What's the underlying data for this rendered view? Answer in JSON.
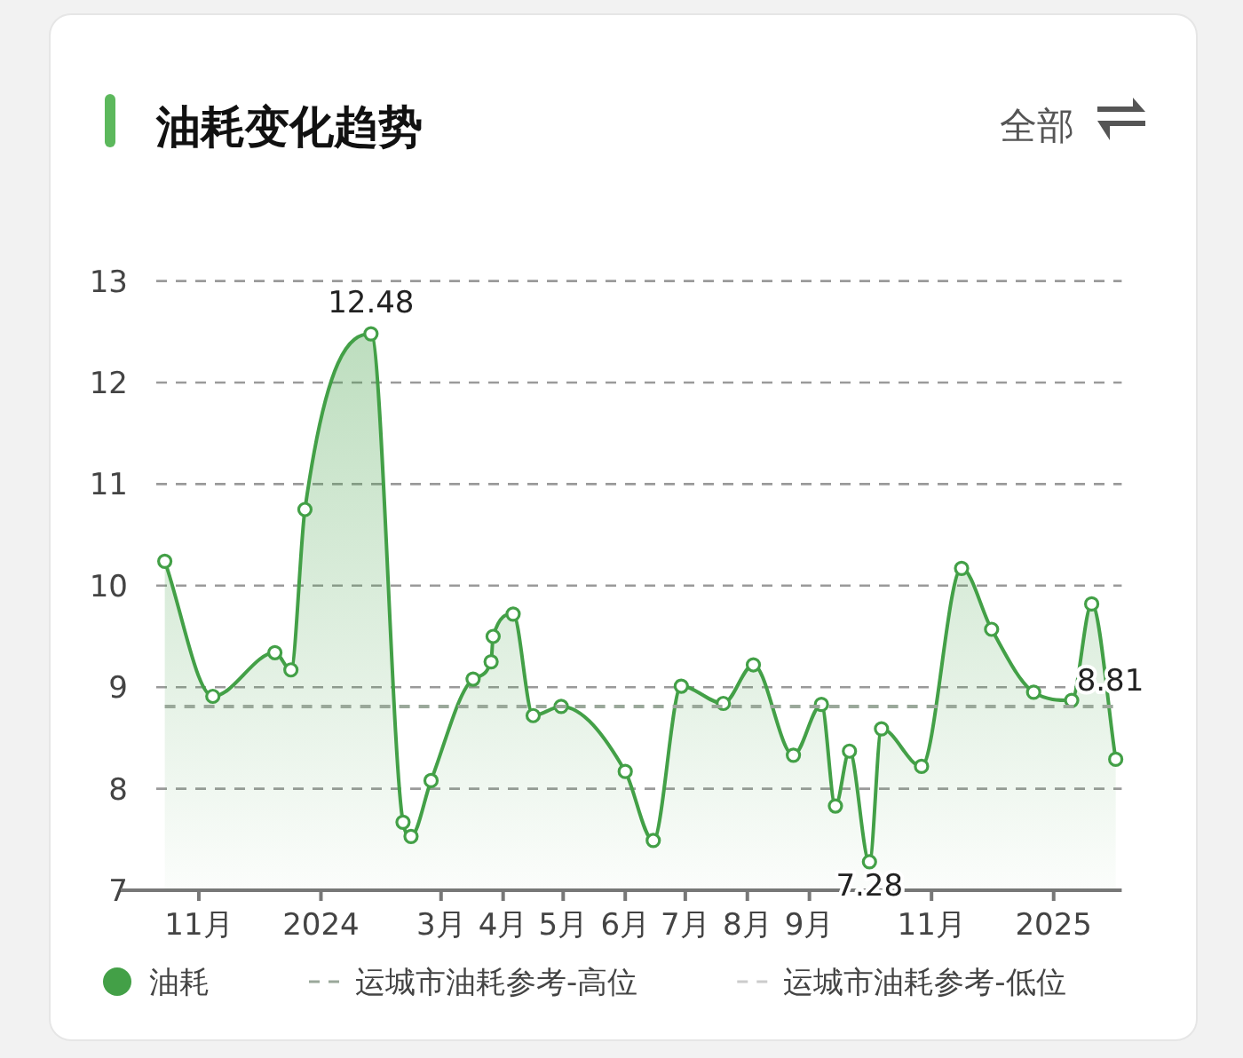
{
  "chart_data": {
    "type": "area",
    "title": "油耗变化趋势",
    "annotations": [
      "全部"
    ],
    "x": [
      "2023-10-15",
      "2023-11-08",
      "2023-12-09",
      "2023-12-17",
      "2023-12-24",
      "2024-01-26",
      "2024-02-11",
      "2024-02-15",
      "2024-02-25",
      "2024-03-17",
      "2024-03-26",
      "2024-03-27",
      "2024-04-06",
      "2024-04-16",
      "2024-04-30",
      "2024-06-01",
      "2024-06-15",
      "2024-06-29",
      "2024-07-20",
      "2024-08-04",
      "2024-08-24",
      "2024-09-07",
      "2024-09-14",
      "2024-09-21",
      "2024-10-01",
      "2024-10-07",
      "2024-10-27",
      "2024-11-16",
      "2024-12-01",
      "2024-12-22",
      "2025-01-10",
      "2025-01-20",
      "2025-02-01"
    ],
    "series": [
      {
        "name": "油耗",
        "type": "area",
        "color": "#43a047",
        "marker": "circle",
        "values": [
          10.24,
          8.91,
          9.34,
          9.17,
          10.75,
          12.48,
          7.67,
          7.53,
          8.08,
          9.08,
          9.25,
          9.5,
          9.72,
          8.72,
          8.81,
          8.17,
          7.49,
          9.01,
          8.84,
          9.22,
          8.33,
          8.83,
          7.83,
          8.37,
          7.28,
          8.59,
          8.22,
          10.17,
          9.57,
          8.95,
          8.87,
          9.82,
          8.29
        ],
        "value_labels": [
          null,
          null,
          null,
          null,
          null,
          "12.48",
          null,
          null,
          null,
          null,
          null,
          null,
          null,
          null,
          null,
          null,
          null,
          null,
          null,
          null,
          null,
          null,
          null,
          null,
          "7.28",
          null,
          null,
          null,
          null,
          null,
          null,
          null,
          null
        ]
      },
      {
        "name": "运城市油耗参考-高位",
        "type": "line",
        "color": "#9aa89a",
        "line_style": "dashed",
        "marker": "none",
        "values": [
          8.81,
          8.81,
          8.81,
          8.81,
          8.81,
          8.81,
          8.81,
          8.81,
          8.81,
          8.81,
          8.81,
          8.81,
          8.81,
          8.81,
          8.81,
          8.81,
          8.81,
          8.81,
          8.81,
          8.81,
          8.81,
          8.81,
          8.81,
          8.81,
          8.81,
          8.81,
          8.81,
          8.81,
          8.81,
          8.81,
          8.81,
          8.81,
          8.81
        ],
        "value_labels": [
          null,
          null,
          null,
          null,
          null,
          null,
          null,
          null,
          null,
          null,
          null,
          null,
          null,
          null,
          null,
          null,
          null,
          null,
          null,
          null,
          null,
          null,
          null,
          null,
          null,
          null,
          null,
          null,
          null,
          null,
          null,
          null,
          "8.81"
        ]
      },
      {
        "name": "运城市油耗参考-低位",
        "type": "line",
        "color": "#cccccc",
        "line_style": "dashed",
        "marker": "none",
        "values": [
          null,
          null,
          null,
          null,
          null,
          null,
          null,
          null,
          null,
          null,
          null,
          null,
          null,
          null,
          null,
          null,
          null,
          null,
          null,
          null,
          null,
          null,
          null,
          null,
          null,
          null,
          null,
          null,
          null,
          null,
          null,
          null,
          null
        ]
      }
    ],
    "xlim": [
      "2023-09-23",
      "2025-02-04"
    ],
    "xticks": [
      {
        "value": "2023-11-01",
        "label": "11月"
      },
      {
        "value": "2024-01-01",
        "label": "2024"
      },
      {
        "value": "2024-03-01",
        "label": "3月"
      },
      {
        "value": "2024-04-01",
        "label": "4月"
      },
      {
        "value": "2024-05-01",
        "label": "5月"
      },
      {
        "value": "2024-06-01",
        "label": "6月"
      },
      {
        "value": "2024-07-01",
        "label": "7月"
      },
      {
        "value": "2024-08-01",
        "label": "8月"
      },
      {
        "value": "2024-09-01",
        "label": "9月"
      },
      {
        "value": "2024-11-01",
        "label": "11月"
      },
      {
        "value": "2025-01-01",
        "label": "2025"
      }
    ],
    "ylim": [
      7,
      13
    ],
    "yticks": [
      7,
      8,
      9,
      10,
      11,
      12,
      13
    ],
    "grid": "y",
    "legend": "bottom"
  }
}
